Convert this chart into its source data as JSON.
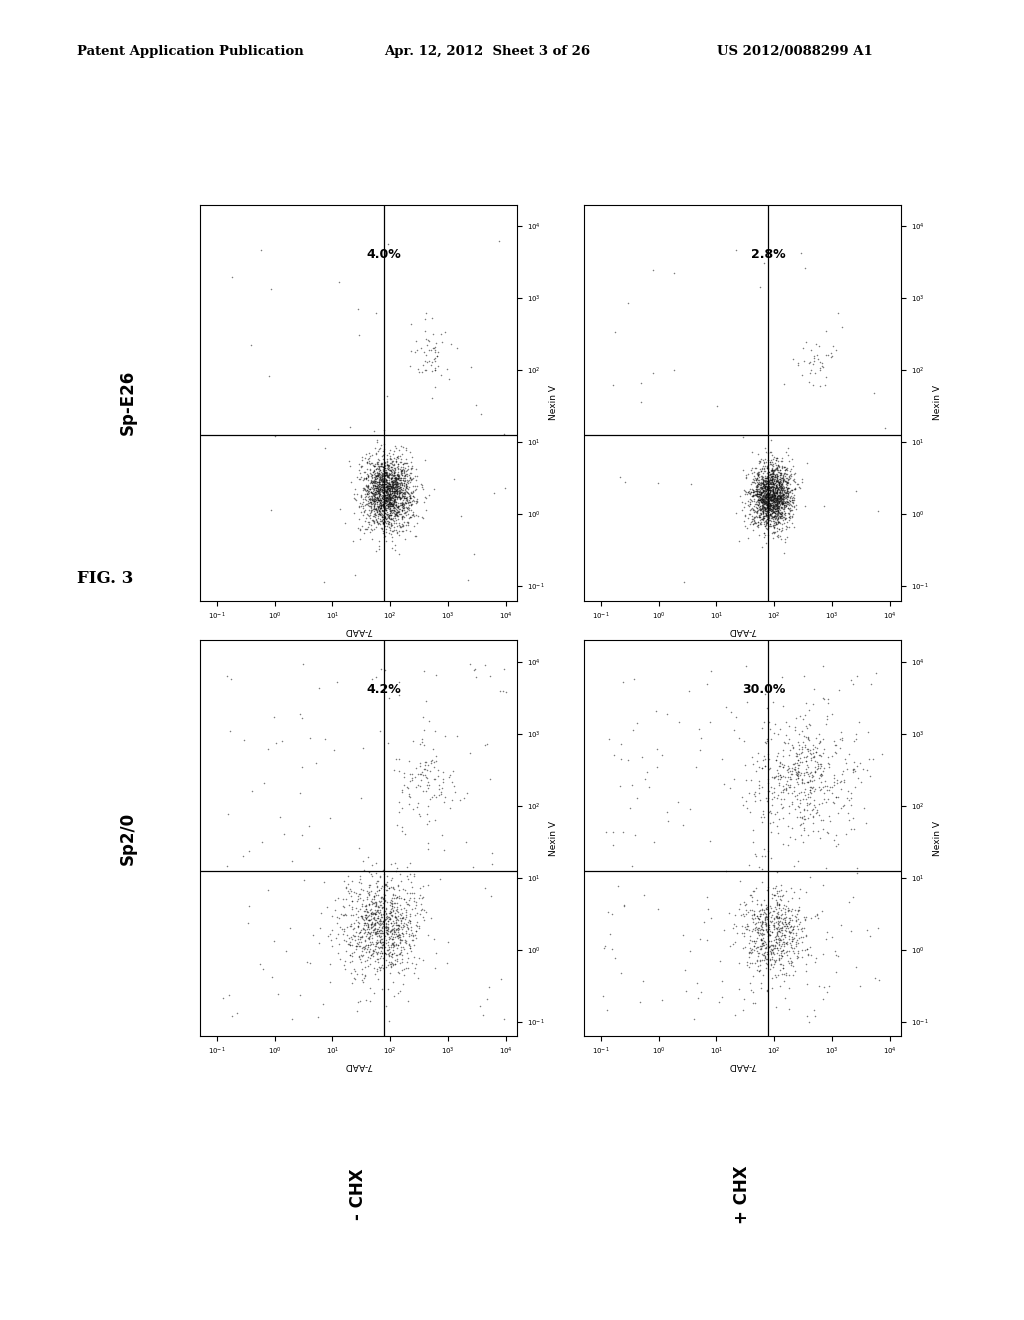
{
  "page_title_left": "Patent Application Publication",
  "page_title_mid": "Apr. 12, 2012  Sheet 3 of 26",
  "page_title_right": "US 2012/0088299 A1",
  "fig_label": "FIG. 3",
  "row_labels_left": [
    "Sp-E26",
    "Sp2/0"
  ],
  "col_labels_bottom": [
    "- CHX",
    "+ CHX"
  ],
  "background_color": "#ffffff",
  "dot_color": "#111111",
  "plots": [
    {
      "row": 0,
      "col": 0,
      "pct": "4.0%",
      "type": "spE26_nochx"
    },
    {
      "row": 0,
      "col": 1,
      "pct": "2.8%",
      "type": "spE26_chx"
    },
    {
      "row": 1,
      "col": 0,
      "pct": "4.2%",
      "type": "sp20_nochx"
    },
    {
      "row": 1,
      "col": 1,
      "pct": "30.0%",
      "type": "sp20_chx"
    }
  ]
}
